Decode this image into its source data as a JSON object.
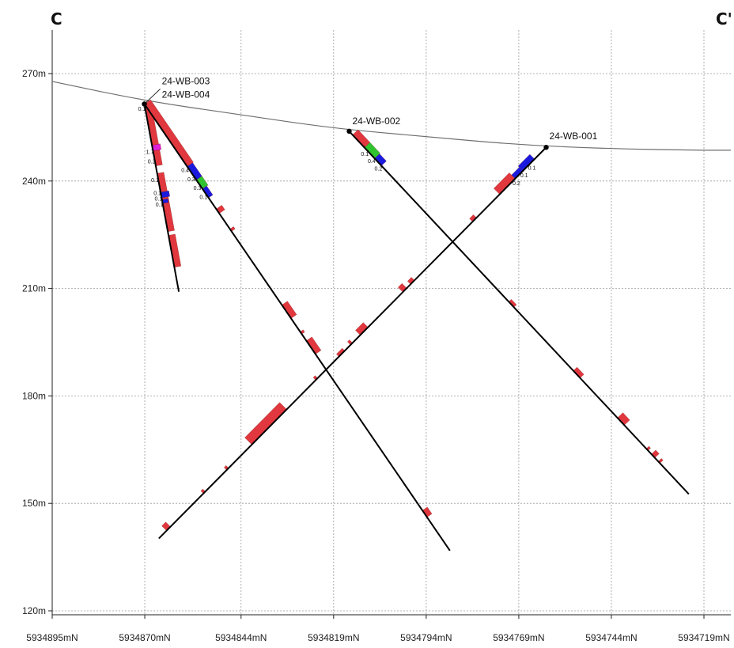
{
  "section": {
    "start_label": "C",
    "end_label": "C'"
  },
  "axes": {
    "elevation_ticks": [
      {
        "value": 270,
        "label": "270m"
      },
      {
        "value": 240,
        "label": "240m"
      },
      {
        "value": 210,
        "label": "210m"
      },
      {
        "value": 180,
        "label": "180m"
      },
      {
        "value": 150,
        "label": "150m"
      },
      {
        "value": 120,
        "label": "120m"
      }
    ],
    "northing_ticks": [
      {
        "value": 5934895,
        "label": "5934895mN"
      },
      {
        "value": 5934870,
        "label": "5934870mN"
      },
      {
        "value": 5934844,
        "label": "5934844mN"
      },
      {
        "value": 5934819,
        "label": "5934819mN"
      },
      {
        "value": 5934794,
        "label": "5934794mN"
      },
      {
        "value": 5934769,
        "label": "5934769mN"
      },
      {
        "value": 5934744,
        "label": "5934744mN"
      },
      {
        "value": 5934719,
        "label": "5934719mN"
      }
    ],
    "grid": true
  },
  "colors": {
    "grid": "#9a9a9a",
    "topography": "#6e6e6e",
    "trace": "#000000",
    "lithology_red": "#e0383e",
    "assay_blue": "#1a1adf",
    "assay_green": "#2fc42f",
    "assay_magenta": "#e020d8"
  },
  "topography": [
    {
      "northing": 5934895,
      "elev": 267.8
    },
    {
      "northing": 5934870,
      "elev": 262.4
    },
    {
      "northing": 5934844,
      "elev": 258.5
    },
    {
      "northing": 5934819,
      "elev": 254.7
    },
    {
      "northing": 5934794,
      "elev": 252.4
    },
    {
      "northing": 5934769,
      "elev": 250.1
    },
    {
      "northing": 5934744,
      "elev": 249.0
    },
    {
      "northing": 5934719,
      "elev": 248.6
    }
  ],
  "drillholes": [
    {
      "name": "24-WB-003",
      "collar": {
        "northing": 5934870.1,
        "elev": 261.5
      },
      "end": {
        "northing": 5934860.8,
        "elev": 209.1
      },
      "intervals": [
        {
          "from": 0.0,
          "to": 0.04,
          "color": "#1a1adf",
          "width": 8
        },
        {
          "from": 0.0,
          "to": 0.33,
          "color": "#e0383e",
          "width": 8
        },
        {
          "from": 0.37,
          "to": 0.68,
          "color": "#e0383e",
          "width": 8
        },
        {
          "from": 0.7,
          "to": 0.87,
          "color": "#e0383e",
          "width": 8
        },
        {
          "from": 0.22,
          "to": 0.25,
          "color": "#e020d8",
          "width": 10
        },
        {
          "from": 0.47,
          "to": 0.5,
          "color": "#1a1adf",
          "width": 10
        },
        {
          "from": 0.51,
          "to": 0.53,
          "color": "#1a1adf",
          "width": 7
        }
      ],
      "assays": [
        {
          "at": 0.02,
          "label": "0.1"
        },
        {
          "at": 0.25,
          "label": "1.7"
        },
        {
          "at": 0.3,
          "label": "0.2"
        },
        {
          "at": 0.4,
          "label": "0.1"
        },
        {
          "at": 0.47,
          "label": "0.1"
        },
        {
          "at": 0.5,
          "label": "0.1"
        },
        {
          "at": 0.53,
          "label": "0.1"
        }
      ]
    },
    {
      "name": "24-WB-004",
      "collar": {
        "northing": 5934870.1,
        "elev": 261.5
      },
      "end": {
        "northing": 5934787.6,
        "elev": 136.8
      },
      "intervals": [
        {
          "from": 0.0,
          "to": 0.14,
          "color": "#e0383e",
          "width": 9
        },
        {
          "from": 0.14,
          "to": 0.17,
          "color": "#1a1adf",
          "width": 8
        },
        {
          "from": 0.17,
          "to": 0.19,
          "color": "#2fc42f",
          "width": 8
        },
        {
          "from": 0.19,
          "to": 0.21,
          "color": "#1a1adf",
          "width": 6
        },
        {
          "from": 0.235,
          "to": 0.245,
          "color": "#e0383e",
          "width": 8
        },
        {
          "from": 0.28,
          "to": 0.285,
          "color": "#e0383e",
          "width": 5
        },
        {
          "from": 0.45,
          "to": 0.48,
          "color": "#e0383e",
          "width": 8
        },
        {
          "from": 0.51,
          "to": 0.515,
          "color": "#e0383e",
          "width": 4
        },
        {
          "from": 0.53,
          "to": 0.56,
          "color": "#e0383e",
          "width": 8
        },
        {
          "from": 0.91,
          "to": 0.925,
          "color": "#e0383e",
          "width": 7
        }
      ],
      "assays": [
        {
          "at": 0.14,
          "label": "0.4"
        },
        {
          "at": 0.16,
          "label": "0.3"
        },
        {
          "at": 0.18,
          "label": "0.3"
        },
        {
          "at": 0.2,
          "label": "0.1"
        }
      ]
    },
    {
      "name": "24-WB-002",
      "collar": {
        "northing": 5934814.8,
        "elev": 253.9
      },
      "end": {
        "northing": 5934723.1,
        "elev": 152.6
      },
      "intervals": [
        {
          "from": 0.01,
          "to": 0.045,
          "color": "#e0383e",
          "width": 9
        },
        {
          "from": 0.045,
          "to": 0.075,
          "color": "#2fc42f",
          "width": 9
        },
        {
          "from": 0.075,
          "to": 0.095,
          "color": "#1a1adf",
          "width": 8
        },
        {
          "from": 0.47,
          "to": 0.485,
          "color": "#e0383e",
          "width": 4
        },
        {
          "from": 0.66,
          "to": 0.68,
          "color": "#e0383e",
          "width": 6
        },
        {
          "from": 0.79,
          "to": 0.81,
          "color": "#e0383e",
          "width": 9
        },
        {
          "from": 0.875,
          "to": 0.88,
          "color": "#e0383e",
          "width": 4
        },
        {
          "from": 0.89,
          "to": 0.9,
          "color": "#e0383e",
          "width": 7
        },
        {
          "from": 0.91,
          "to": 0.915,
          "color": "#e0383e",
          "width": 5
        }
      ],
      "assays": [
        {
          "at": 0.05,
          "label": "0.1"
        },
        {
          "at": 0.07,
          "label": "0.4"
        },
        {
          "at": 0.09,
          "label": "0.2"
        }
      ]
    },
    {
      "name": "24-WB-001",
      "collar": {
        "northing": 5934761.6,
        "elev": 249.4
      },
      "end": {
        "northing": 5934866.2,
        "elev": 140.2
      },
      "intervals": [
        {
          "from": 0.03,
          "to": 0.06,
          "color": "#1a1adf",
          "width": 8
        },
        {
          "from": 0.06,
          "to": 0.08,
          "color": "#1a1adf",
          "width": 6
        },
        {
          "from": 0.08,
          "to": 0.12,
          "color": "#e0383e",
          "width": 10
        },
        {
          "from": 0.18,
          "to": 0.19,
          "color": "#e0383e",
          "width": 5
        },
        {
          "from": 0.34,
          "to": 0.35,
          "color": "#e0383e",
          "width": 5
        },
        {
          "from": 0.36,
          "to": 0.37,
          "color": "#e0383e",
          "width": 8
        },
        {
          "from": 0.46,
          "to": 0.48,
          "color": "#e0383e",
          "width": 8
        },
        {
          "from": 0.5,
          "to": 0.505,
          "color": "#e0383e",
          "width": 5
        },
        {
          "from": 0.52,
          "to": 0.535,
          "color": "#e0383e",
          "width": 4
        },
        {
          "from": 0.59,
          "to": 0.595,
          "color": "#e0383e",
          "width": 4
        },
        {
          "from": 0.67,
          "to": 0.76,
          "color": "#e0383e",
          "width": 12
        },
        {
          "from": 0.82,
          "to": 0.825,
          "color": "#e0383e",
          "width": 4
        },
        {
          "from": 0.88,
          "to": 0.885,
          "color": "#e0383e",
          "width": 4
        },
        {
          "from": 0.97,
          "to": 0.98,
          "color": "#e0383e",
          "width": 8
        }
      ],
      "assays": [
        {
          "at": 0.04,
          "label": "0.1"
        },
        {
          "at": 0.06,
          "label": "0.1"
        },
        {
          "at": 0.08,
          "label": "0.2"
        }
      ]
    }
  ],
  "hole_labels": [
    {
      "hole": "24-WB-003",
      "text": "24-WB-003",
      "leader": true
    },
    {
      "hole": "24-WB-004",
      "text": "24-WB-004",
      "leader": false
    },
    {
      "hole": "24-WB-002",
      "text": "24-WB-002",
      "leader": false
    },
    {
      "hole": "24-WB-001",
      "text": "24-WB-001",
      "leader": false
    }
  ]
}
